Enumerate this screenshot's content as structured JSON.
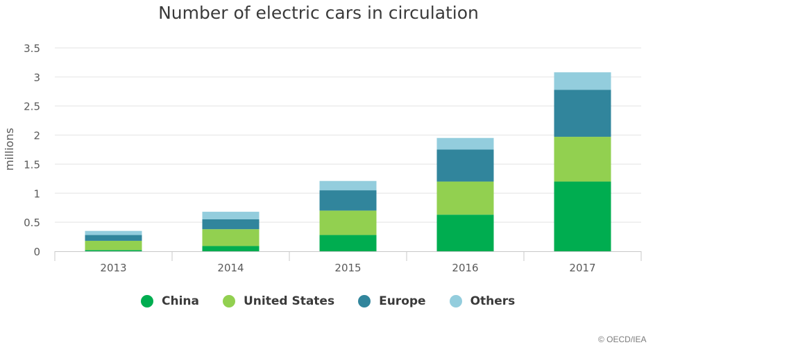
{
  "chart_data": {
    "type": "bar",
    "stacked": true,
    "title": "Number of electric cars in circulation",
    "ylabel": "millions",
    "xlabel": "",
    "ylim": [
      0,
      3.5
    ],
    "yticks": [
      "0",
      "0.5",
      "1",
      "1.5",
      "2",
      "2.5",
      "3",
      "3.5"
    ],
    "grid": true,
    "legend_position": "bottom",
    "categories": [
      "2013",
      "2014",
      "2015",
      "2016",
      "2017"
    ],
    "series": [
      {
        "name": "China",
        "color": "#00ad50",
        "values": [
          0.02,
          0.09,
          0.28,
          0.63,
          1.2
        ]
      },
      {
        "name": "United States",
        "color": "#92d050",
        "values": [
          0.16,
          0.29,
          0.42,
          0.57,
          0.77
        ]
      },
      {
        "name": "Europe",
        "color": "#31859c",
        "values": [
          0.1,
          0.17,
          0.35,
          0.55,
          0.81
        ]
      },
      {
        "name": "Others",
        "color": "#93cddd",
        "values": [
          0.07,
          0.13,
          0.16,
          0.2,
          0.3
        ]
      }
    ]
  },
  "credit": "© OECD/IEA"
}
